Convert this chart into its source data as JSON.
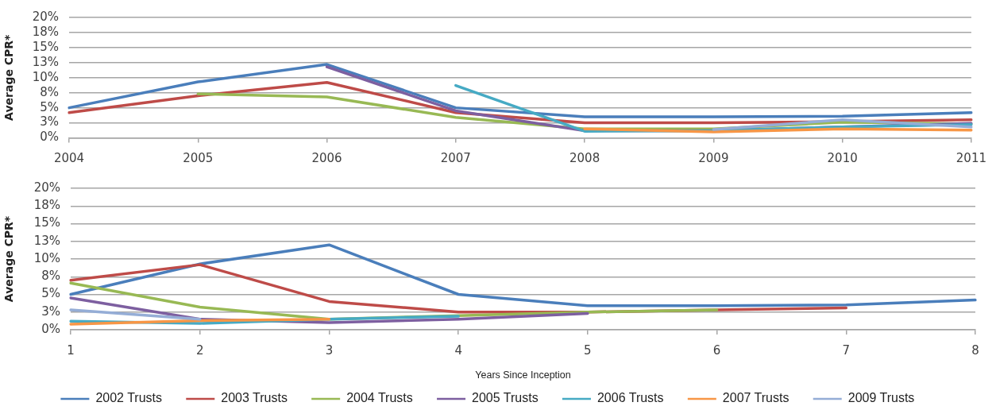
{
  "chart_data": [
    {
      "type": "line",
      "categories": [
        "2004",
        "2005",
        "2006",
        "2007",
        "2008",
        "2009",
        "2010",
        "2011"
      ],
      "series": [
        {
          "color": "#4a7ebb",
          "values": [
            5.0,
            9.3,
            12.2,
            5.0,
            3.5,
            3.5,
            3.6,
            4.2
          ]
        },
        {
          "color": "#be4b48",
          "values": [
            4.2,
            7.0,
            9.2,
            4.2,
            2.5,
            2.5,
            2.7,
            3.0
          ]
        },
        {
          "color": "#98b954",
          "values": [
            null,
            7.3,
            6.8,
            3.4,
            1.5,
            1.5,
            2.6,
            2.3
          ]
        },
        {
          "color": "#7d5fa0",
          "values": [
            null,
            null,
            11.8,
            4.5,
            1.2,
            1.2,
            1.8,
            2.4
          ]
        },
        {
          "color": "#46aac4",
          "values": [
            null,
            null,
            null,
            8.7,
            1.1,
            1.2,
            1.8,
            2.2
          ]
        },
        {
          "color": "#f79646",
          "values": [
            null,
            null,
            null,
            null,
            1.5,
            1.0,
            1.5,
            1.3
          ]
        },
        {
          "color": "#95add6",
          "values": [
            null,
            null,
            null,
            null,
            null,
            1.4,
            3.0,
            1.8
          ]
        }
      ],
      "ylabel": "Average CPR*",
      "ylim": [
        0,
        20
      ],
      "yticks": [
        {
          "value": 0,
          "label": "0%"
        },
        {
          "value": 2.5,
          "label": "3%"
        },
        {
          "value": 5,
          "label": "5%"
        },
        {
          "value": 7.5,
          "label": "8%"
        },
        {
          "value": 10,
          "label": "10%"
        },
        {
          "value": 12.5,
          "label": "13%"
        },
        {
          "value": 15,
          "label": "15%"
        },
        {
          "value": 17.5,
          "label": "18%"
        },
        {
          "value": 20,
          "label": "20%"
        }
      ],
      "grid": "y",
      "marker": "none"
    },
    {
      "type": "line",
      "categories": [
        "1",
        "2",
        "3",
        "4",
        "5",
        "6",
        "7",
        "8"
      ],
      "series": [
        {
          "name": "2002 Trusts",
          "color": "#4a7ebb",
          "values": [
            5.0,
            9.3,
            12.0,
            5.0,
            3.4,
            3.4,
            3.5,
            4.2
          ]
        },
        {
          "name": "2003 Trusts",
          "color": "#be4b48",
          "values": [
            7.0,
            9.2,
            4.0,
            2.5,
            2.5,
            2.8,
            3.1,
            null
          ]
        },
        {
          "name": "2004 Trusts",
          "color": "#98b954",
          "values": [
            6.6,
            3.2,
            1.5,
            2.0,
            2.5,
            2.8,
            null,
            null
          ]
        },
        {
          "name": "2005 Trusts",
          "color": "#7d5fa0",
          "values": [
            4.5,
            1.5,
            1.0,
            1.5,
            2.3,
            null,
            null,
            null
          ]
        },
        {
          "name": "2006 Trusts",
          "color": "#46aac4",
          "values": [
            1.2,
            0.9,
            1.5,
            1.9,
            null,
            null,
            null,
            null
          ]
        },
        {
          "name": "2007 Trusts",
          "color": "#f79646",
          "values": [
            0.8,
            1.3,
            1.5,
            null,
            null,
            null,
            null,
            null
          ]
        },
        {
          "name": "2009 Trusts",
          "color": "#95add6",
          "values": [
            2.8,
            1.5,
            null,
            null,
            null,
            null,
            null,
            null
          ]
        }
      ],
      "xlabel": "Years Since Inception",
      "ylabel": "Average CPR*",
      "ylim": [
        0,
        20
      ],
      "yticks": [
        {
          "value": 0,
          "label": "0%"
        },
        {
          "value": 2.5,
          "label": "3%"
        },
        {
          "value": 5,
          "label": "5%"
        },
        {
          "value": 7.5,
          "label": "8%"
        },
        {
          "value": 10,
          "label": "10%"
        },
        {
          "value": 12.5,
          "label": "13%"
        },
        {
          "value": 15,
          "label": "15%"
        },
        {
          "value": 17.5,
          "label": "18%"
        },
        {
          "value": 20,
          "label": "20%"
        }
      ],
      "grid": "y",
      "legend": "bottom",
      "marker": "none"
    }
  ]
}
